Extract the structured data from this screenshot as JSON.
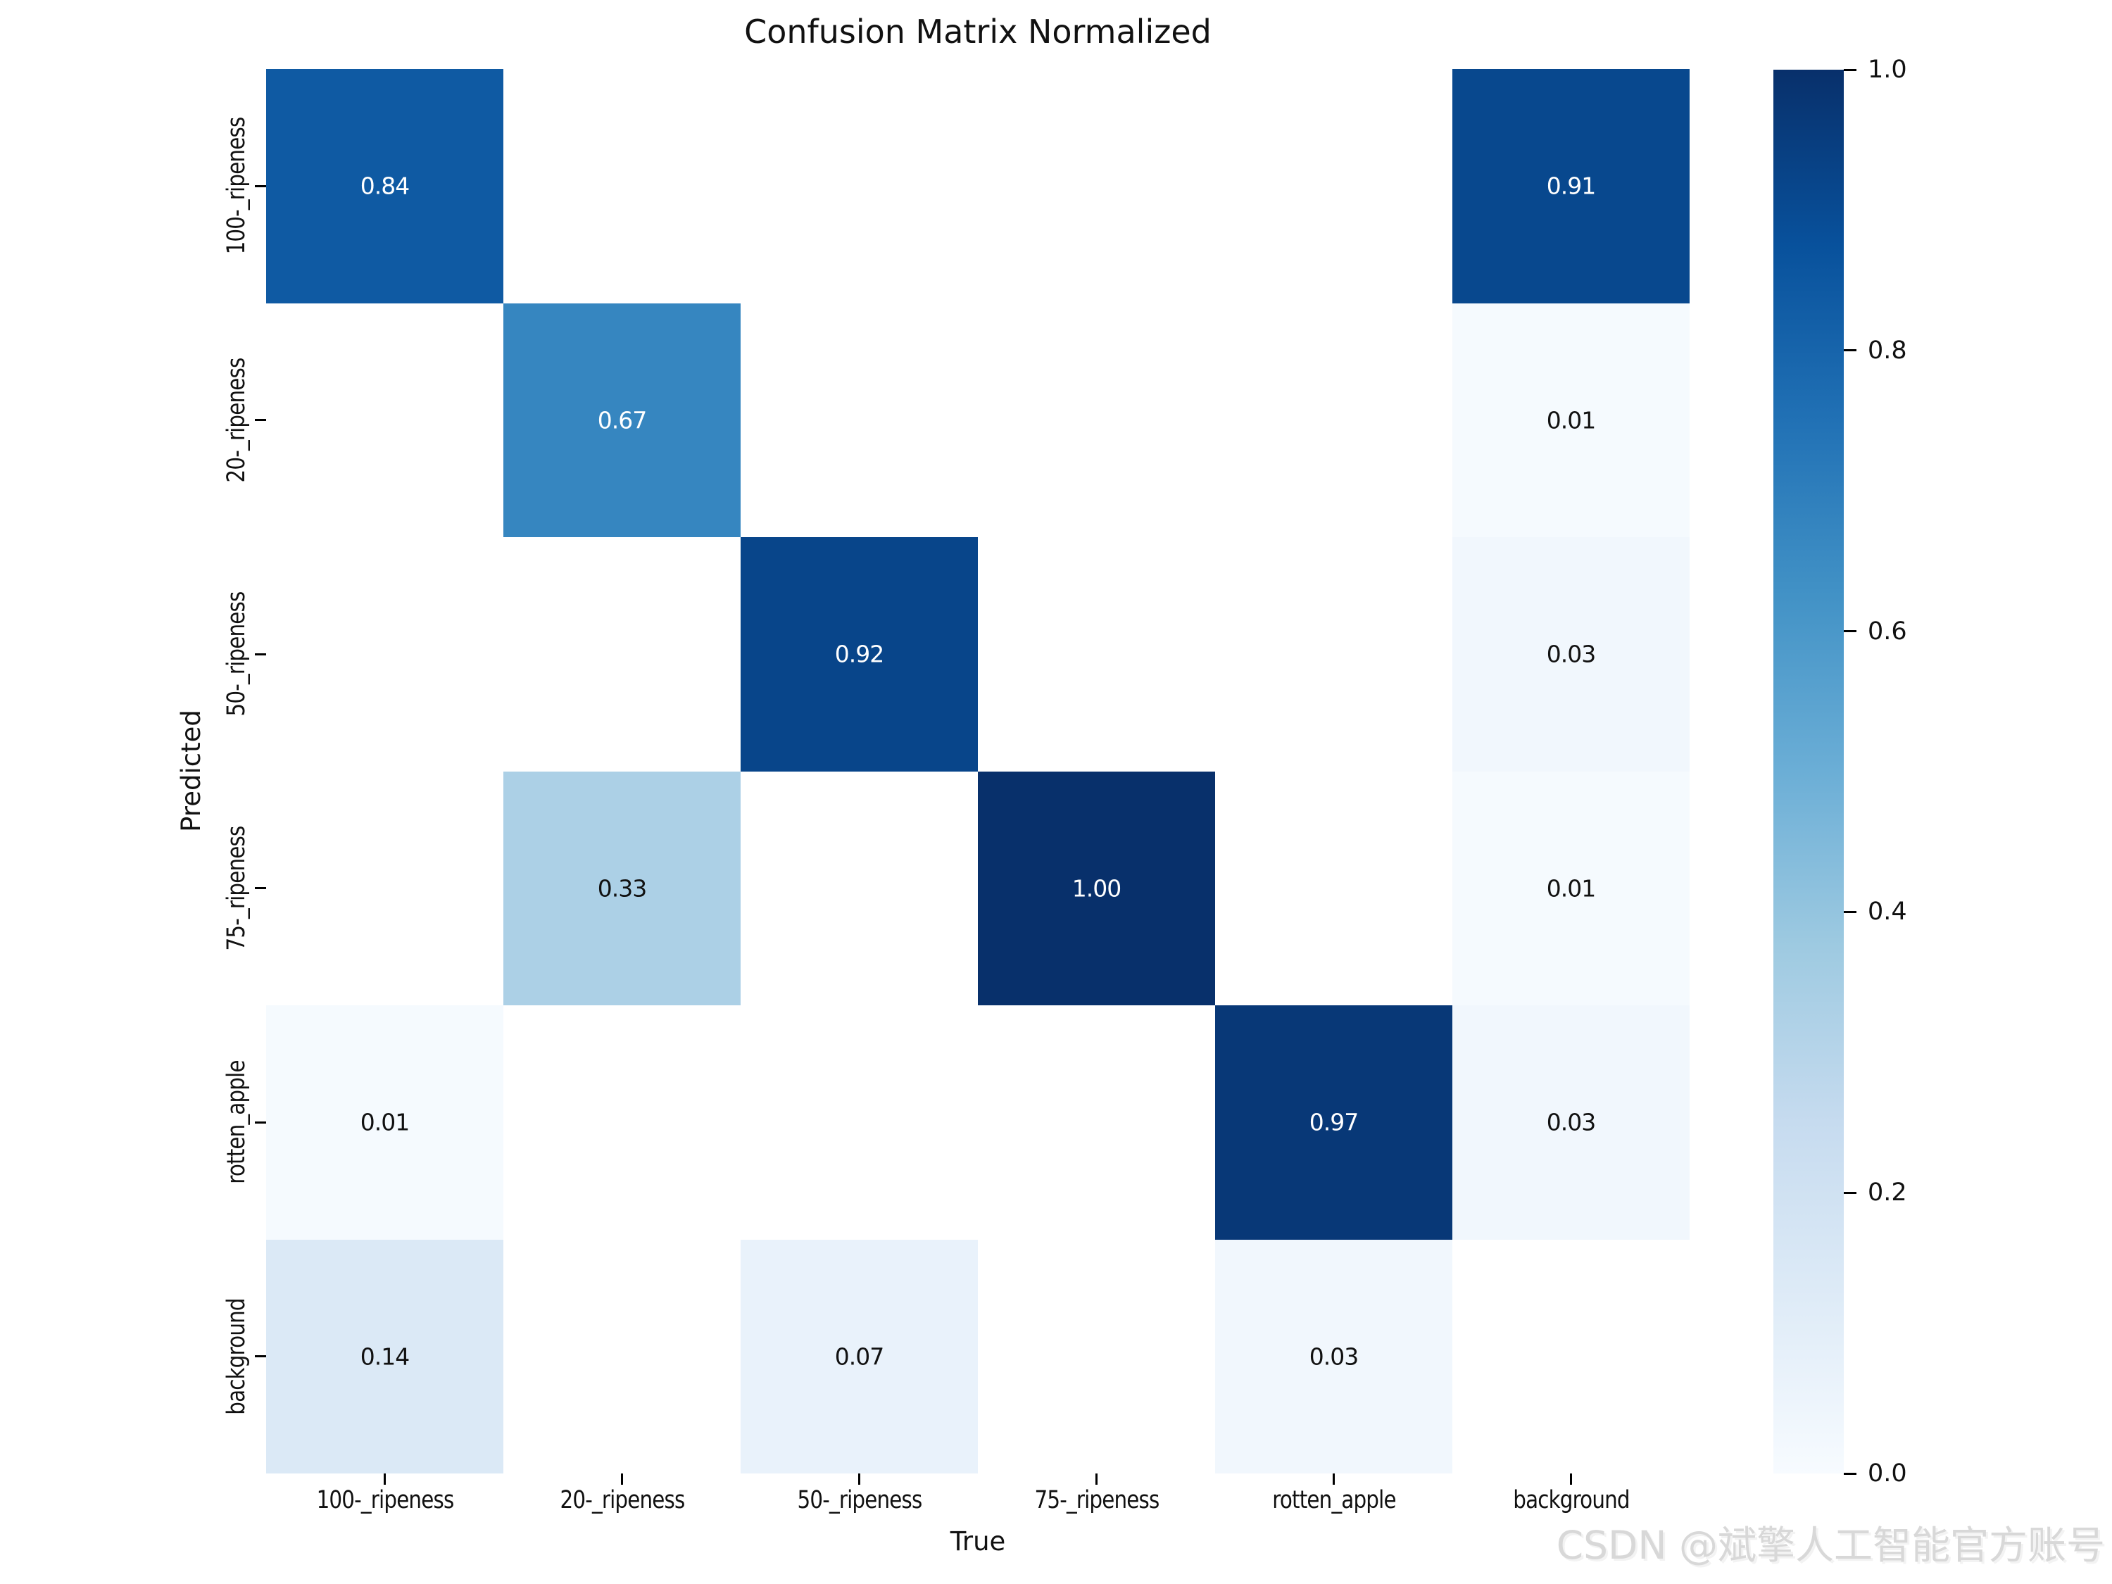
{
  "title": "Confusion Matrix Normalized",
  "watermark": "CSDN @斌擎人工智能官方账号",
  "chart_data": {
    "type": "heatmap",
    "title": "Confusion Matrix Normalized",
    "xlabel": "True",
    "ylabel": "Predicted",
    "x_labels": [
      "100-_ripeness",
      "20-_ripeness",
      "50-_ripeness",
      "75-_ripeness",
      "rotten_apple",
      "background"
    ],
    "y_labels": [
      "100-_ripeness",
      "20-_ripeness",
      "50-_ripeness",
      "75-_ripeness",
      "rotten_apple",
      "background"
    ],
    "matrix": [
      [
        0.84,
        null,
        null,
        null,
        null,
        0.91
      ],
      [
        null,
        0.67,
        null,
        null,
        null,
        0.01
      ],
      [
        null,
        null,
        0.92,
        null,
        null,
        0.03
      ],
      [
        null,
        0.33,
        null,
        1.0,
        null,
        0.01
      ],
      [
        0.01,
        null,
        null,
        null,
        0.97,
        0.03
      ],
      [
        0.14,
        null,
        0.07,
        null,
        0.03,
        null
      ]
    ],
    "annotation_decimals": 2,
    "empty_cell_color": "#ffffff",
    "annotation_colors": {
      "on_dark": "#ffffff",
      "on_light": "#111111",
      "white_text_threshold": 0.5
    },
    "colormap": {
      "name": "Blues",
      "anchors": [
        [
          0.0,
          "#f7fbff"
        ],
        [
          0.125,
          "#deebf7"
        ],
        [
          0.25,
          "#c6dbef"
        ],
        [
          0.375,
          "#9ecae1"
        ],
        [
          0.5,
          "#6baed6"
        ],
        [
          0.625,
          "#4292c6"
        ],
        [
          0.75,
          "#2171b5"
        ],
        [
          0.875,
          "#08519c"
        ],
        [
          1.0,
          "#08306b"
        ]
      ]
    },
    "colorbar": {
      "range": [
        0.0,
        1.0
      ],
      "ticks": [
        {
          "label": "1.0",
          "value": 1.0
        },
        {
          "label": "0.8",
          "value": 0.8
        },
        {
          "label": "0.6",
          "value": 0.6
        },
        {
          "label": "0.4",
          "value": 0.4
        },
        {
          "label": "0.2",
          "value": 0.2
        },
        {
          "label": "0.0",
          "value": 0.0
        }
      ]
    },
    "grid": false,
    "legend": "colorbar-right"
  }
}
